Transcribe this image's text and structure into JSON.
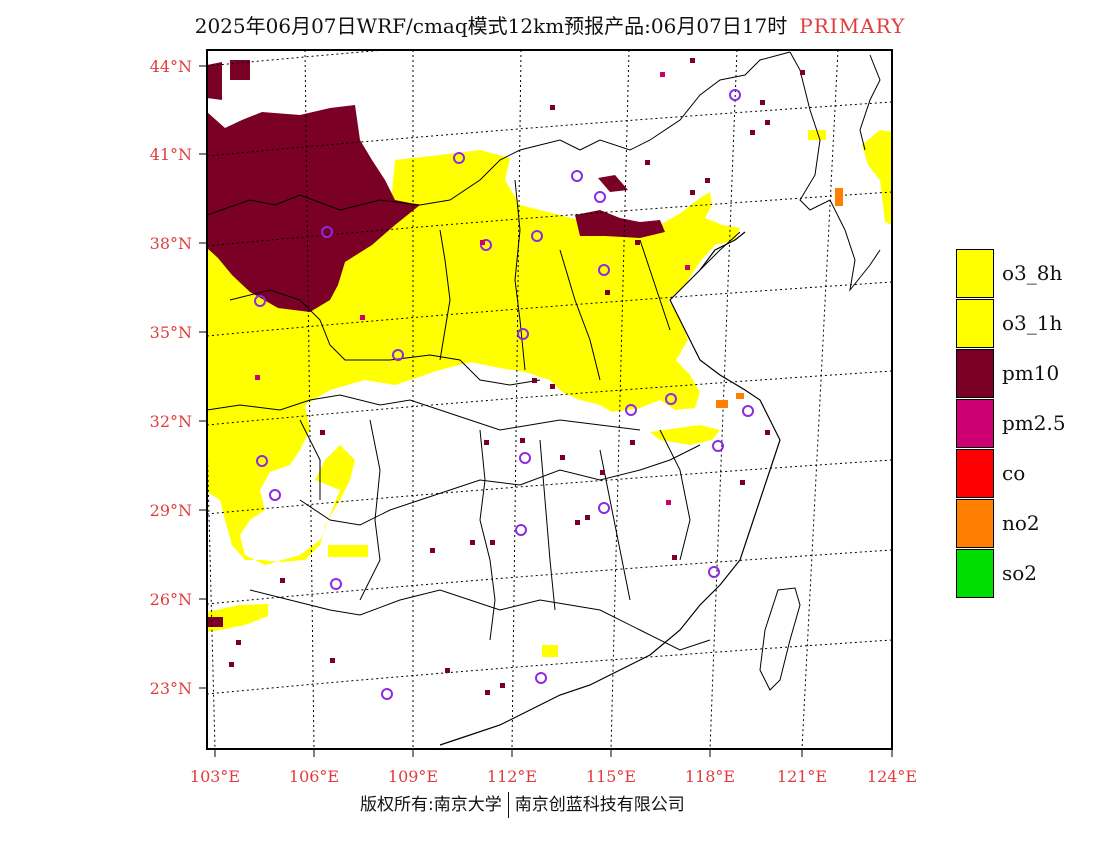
{
  "title": {
    "text": "2025年06月07日WRF/cmaq模式12km预报产品:06月07日17时",
    "tag": "PRIMARY"
  },
  "axes": {
    "lat_labels": [
      "44°N",
      "41°N",
      "38°N",
      "35°N",
      "32°N",
      "29°N",
      "26°N",
      "23°N"
    ],
    "lon_labels": [
      "103°E",
      "106°E",
      "109°E",
      "112°E",
      "115°E",
      "118°E",
      "121°E",
      "124°E"
    ],
    "label_color": "#e03c3c"
  },
  "legend": [
    {
      "label": "o3_8h",
      "color": "#ffff00"
    },
    {
      "label": "o3_1h",
      "color": "#ffff00"
    },
    {
      "label": "pm10",
      "color": "#7a0026"
    },
    {
      "label": "pm2.5",
      "color": "#cc0070"
    },
    {
      "label": "co",
      "color": "#ff0000"
    },
    {
      "label": "no2",
      "color": "#ff7f00"
    },
    {
      "label": "so2",
      "color": "#00dd00"
    }
  ],
  "footer": {
    "left": "版权所有:南京大学",
    "right": "南京创蓝科技有限公司"
  }
}
